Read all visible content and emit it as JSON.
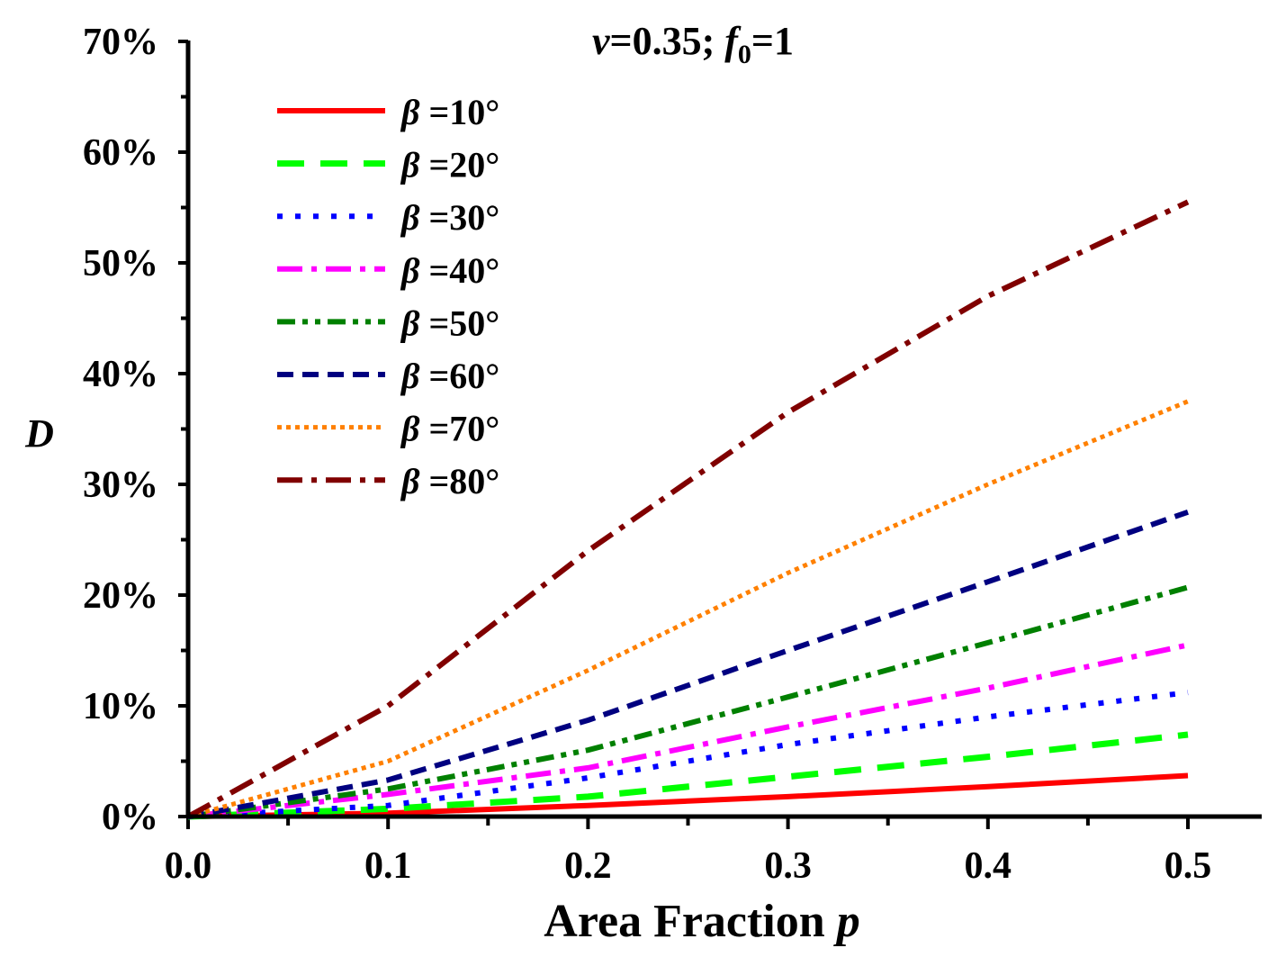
{
  "chart_data": {
    "type": "line",
    "title": {
      "v_symbol": "v",
      "v_text": "=0.35; ",
      "f_symbol": "f",
      "f_subscript": "0",
      "f_text": "=1"
    },
    "xlabel_text": "Area Fraction ",
    "xlabel_symbol": "p",
    "ylabel": "D",
    "xlim": [
      0,
      0.54
    ],
    "ylim": [
      0,
      70
    ],
    "xticks": [
      0.0,
      0.1,
      0.2,
      0.3,
      0.4,
      0.5
    ],
    "xtick_labels": [
      "0.0",
      "0.1",
      "0.2",
      "0.3",
      "0.4",
      "0.5"
    ],
    "yticks": [
      0,
      10,
      20,
      30,
      40,
      50,
      60,
      70
    ],
    "ytick_labels": [
      "0%",
      "10%",
      "20%",
      "30%",
      "40%",
      "50%",
      "60%",
      "70%"
    ],
    "legend_position": "top-left",
    "legend_symbol": "β",
    "x": [
      0,
      0.1,
      0.2,
      0.3,
      0.4,
      0.5
    ],
    "series": [
      {
        "name": "β =10°",
        "label_text": " =10°",
        "color": "#ff0000",
        "dash": "solid",
        "values": [
          0,
          0.3,
          1.0,
          1.8,
          2.7,
          3.7
        ]
      },
      {
        "name": "β =20°",
        "label_text": " =20°",
        "color": "#00ff00",
        "dash": "dash",
        "values": [
          0,
          0.7,
          1.8,
          3.6,
          5.4,
          7.4
        ]
      },
      {
        "name": "β =30°",
        "label_text": " =30°",
        "color": "#0000ff",
        "dash": "dot",
        "values": [
          0,
          1.0,
          3.5,
          6.5,
          9.0,
          11.2
        ]
      },
      {
        "name": "β =40°",
        "label_text": " =40°",
        "color": "#ff00ff",
        "dash": "dashdot",
        "values": [
          0,
          2.0,
          4.4,
          8.1,
          11.6,
          15.5
        ]
      },
      {
        "name": "β =50°",
        "label_text": " =50°",
        "color": "#008000",
        "dash": "dashdotdot",
        "values": [
          0,
          2.5,
          6.0,
          10.8,
          15.7,
          20.7
        ]
      },
      {
        "name": "β =60°",
        "label_text": " =60°",
        "color": "#000080",
        "dash": "shortdash",
        "values": [
          0,
          3.3,
          8.7,
          15.0,
          21.2,
          27.5
        ]
      },
      {
        "name": "β =70°",
        "label_text": " =70°",
        "color": "#ff8000",
        "dash": "shortdot",
        "values": [
          0,
          5.0,
          13.2,
          22.0,
          30.0,
          37.5
        ]
      },
      {
        "name": "β =80°",
        "label_text": " =80°",
        "color": "#800000",
        "dash": "dashdot",
        "values": [
          0,
          10.0,
          24.0,
          36.5,
          47.0,
          55.5
        ]
      }
    ]
  }
}
